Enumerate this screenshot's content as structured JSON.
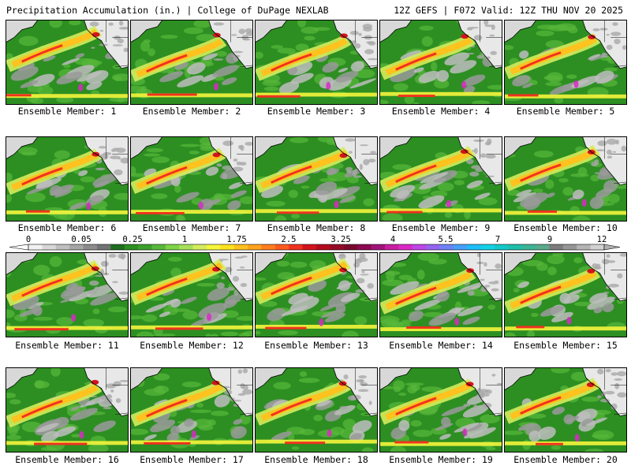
{
  "header": {
    "left": "Precipitation Accumulation (in.) | College of DuPage NEXLAB",
    "right": "12Z GEFS | F072 Valid: 12Z THU NOV 20 2025"
  },
  "members": [
    {
      "label": "Ensemble Member: 1"
    },
    {
      "label": "Ensemble Member: 2"
    },
    {
      "label": "Ensemble Member: 3"
    },
    {
      "label": "Ensemble Member: 4"
    },
    {
      "label": "Ensemble Member: 5"
    },
    {
      "label": "Ensemble Member: 6"
    },
    {
      "label": "Ensemble Member: 7"
    },
    {
      "label": "Ensemble Member: 8"
    },
    {
      "label": "Ensemble Member: 9"
    },
    {
      "label": "Ensemble Member: 10"
    },
    {
      "label": "Ensemble Member: 11"
    },
    {
      "label": "Ensemble Member: 12"
    },
    {
      "label": "Ensemble Member: 13"
    },
    {
      "label": "Ensemble Member: 14"
    },
    {
      "label": "Ensemble Member: 15"
    },
    {
      "label": "Ensemble Member: 16"
    },
    {
      "label": "Ensemble Member: 17"
    },
    {
      "label": "Ensemble Member: 18"
    },
    {
      "label": "Ensemble Member: 19"
    },
    {
      "label": "Ensemble Member: 20"
    }
  ],
  "colorbar": {
    "labels": [
      "0",
      "0.05",
      "0.25",
      "1",
      "1.75",
      "2.5",
      "3.25",
      "4",
      "5.5",
      "7",
      "9",
      "12"
    ],
    "colors": [
      "#f2f2f2",
      "#d8d8d8",
      "#bfbfbf",
      "#a6a6a6",
      "#8c8c8c",
      "#737373",
      "#1e6e1e",
      "#2d8f22",
      "#3ca02c",
      "#58b83a",
      "#7ed348",
      "#a6e05a",
      "#d4ec5c",
      "#f5f53c",
      "#ffe21e",
      "#ffc21e",
      "#ffa21e",
      "#ff7e1e",
      "#ff5a1e",
      "#f0321e",
      "#d2141e",
      "#b40a1e",
      "#960a28",
      "#780a2d",
      "#8c0a50",
      "#a0147a",
      "#c81ea0",
      "#dc28c8",
      "#be46e6",
      "#9664f0",
      "#6e82f5",
      "#46a0fa",
      "#1ebefa",
      "#14d2e6",
      "#14c8c8",
      "#1ebeaa",
      "#3cb496",
      "#5aaa8c",
      "#7c7c7c",
      "#969696",
      "#b4b4b4",
      "#d2d2d2"
    ]
  }
}
